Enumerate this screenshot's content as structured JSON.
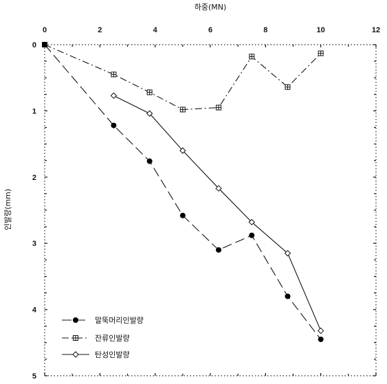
{
  "chart_data": {
    "type": "line",
    "xlabel": "하중(MN)",
    "ylabel": "인발량(mm)",
    "xlim": [
      0,
      12
    ],
    "ylim": [
      0,
      5
    ],
    "y_inverted": true,
    "x_axis_position": "top",
    "x_ticks": [
      "0",
      "2",
      "4",
      "6",
      "8",
      "10",
      "12"
    ],
    "y_ticks": [
      "0",
      "1",
      "2",
      "3",
      "4",
      "5"
    ],
    "grid": false,
    "legend_position": "bottom-left",
    "series": [
      {
        "name": "말뚝머리인발량",
        "marker": "filled-circle",
        "line": "dash-long",
        "color": "#111111",
        "x": [
          0,
          2.5,
          3.8,
          5.0,
          6.3,
          7.5,
          8.8,
          10.0
        ],
        "y": [
          0,
          1.22,
          1.76,
          2.58,
          3.1,
          2.88,
          3.8,
          4.45
        ]
      },
      {
        "name": "잔류인발량",
        "marker": "square-cross",
        "line": "dash-dot",
        "color": "#111111",
        "x": [
          0,
          2.5,
          3.8,
          5.0,
          6.3,
          7.5,
          8.8,
          10.0
        ],
        "y": [
          0,
          0.45,
          0.72,
          0.98,
          0.95,
          0.18,
          0.64,
          0.13
        ]
      },
      {
        "name": "탄성인발량",
        "marker": "open-diamond",
        "line": "solid-thin",
        "color": "#111111",
        "x": [
          2.5,
          3.8,
          5.0,
          6.3,
          7.5,
          8.8,
          10.0
        ],
        "y": [
          0.77,
          1.04,
          1.6,
          2.17,
          2.68,
          3.15,
          4.32
        ]
      }
    ]
  }
}
